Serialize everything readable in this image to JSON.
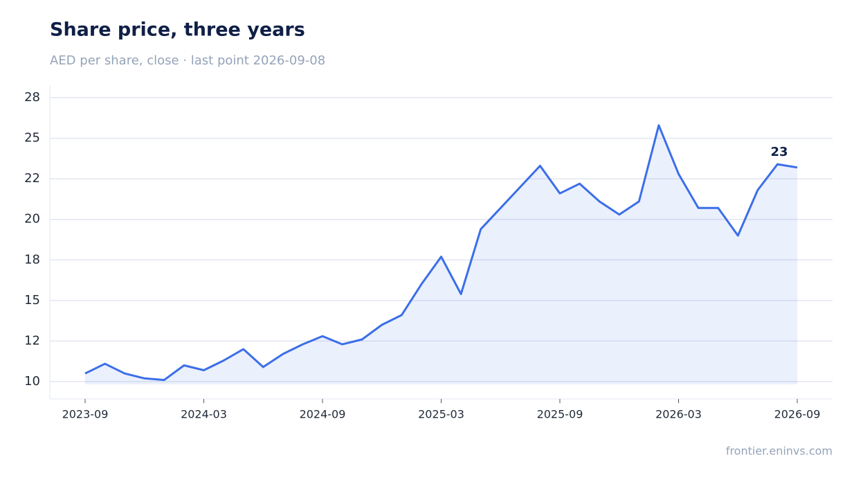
{
  "chart_data": {
    "type": "line",
    "title": "Share price, three years",
    "subtitle": "AED per share, close · last point 2026-09-08",
    "source": "frontier.eninvs.com",
    "x": [
      "2023-09",
      "2023-10",
      "2023-11",
      "2023-12",
      "2024-01",
      "2024-02",
      "2024-03",
      "2024-04",
      "2024-05",
      "2024-06",
      "2024-07",
      "2024-08",
      "2024-09",
      "2024-10",
      "2024-11",
      "2024-12",
      "2025-01",
      "2025-02",
      "2025-03",
      "2025-04",
      "2025-05",
      "2025-06",
      "2025-07",
      "2025-08",
      "2025-09",
      "2025-10",
      "2025-11",
      "2025-12",
      "2026-01",
      "2026-02",
      "2026-03",
      "2026-04",
      "2026-05",
      "2026-06",
      "2026-07",
      "2026-08",
      "2026-09"
    ],
    "series": [
      {
        "name": "Close",
        "color": "#3b6ee8",
        "values": [
          10.5,
          11.1,
          10.5,
          10.2,
          10.1,
          11.0,
          10.7,
          11.3,
          12.0,
          10.9,
          11.7,
          12.3,
          12.8,
          12.3,
          12.6,
          13.5,
          14.1,
          16.0,
          17.7,
          15.4,
          19.4,
          20.7,
          22.0,
          23.3,
          21.6,
          22.2,
          21.1,
          20.3,
          21.1,
          25.8,
          22.8,
          20.7,
          20.7,
          19.0,
          21.8,
          23.4,
          23.2
        ],
        "value_labels": [
          null,
          null,
          null,
          null,
          null,
          null,
          null,
          null,
          null,
          null,
          null,
          null,
          null,
          null,
          null,
          null,
          null,
          null,
          null,
          null,
          null,
          null,
          null,
          null,
          null,
          null,
          null,
          null,
          null,
          null,
          null,
          null,
          null,
          null,
          null,
          null,
          "23"
        ]
      }
    ],
    "ylim": [
      8.93,
      28.27
    ],
    "yticks": [
      10,
      {
        "value": 12.5,
        "label": "12"
      },
      15,
      {
        "value": 17.5,
        "label": "18"
      },
      20,
      {
        "value": 22.5,
        "label": "22"
      },
      25,
      {
        "value": 27.5,
        "label": "28"
      }
    ],
    "xticks": [
      "2023-09",
      "2024-03",
      "2024-09",
      "2025-03",
      "2025-09",
      "2026-03",
      "2026-09"
    ],
    "grid": true
  }
}
